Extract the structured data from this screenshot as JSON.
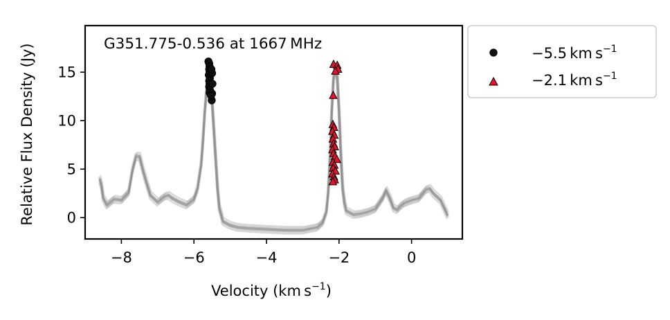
{
  "chart_data": {
    "type": "line",
    "title": "G351.775-0.536 at 1667 MHz",
    "xlabel": "Velocity (km s",
    "xlabel_sup": "−1",
    "xlabel_close": ")",
    "ylabel": "Relative Flux Density (Jy)",
    "xlim": [
      -9.0,
      1.4
    ],
    "ylim": [
      -2.2,
      19.8
    ],
    "x_ticks": [
      -8,
      -6,
      -4,
      -2,
      0
    ],
    "x_tick_labels": [
      "−8",
      "−6",
      "−4",
      "−2",
      "0"
    ],
    "y_ticks": [
      0,
      5,
      10,
      15
    ],
    "y_tick_labels": [
      "0",
      "5",
      "10",
      "15"
    ],
    "grid": false,
    "legend_position": "outside-right",
    "spectrum_color": "#8f8f8f",
    "spectrum_x": [
      -8.6,
      -8.55,
      -8.5,
      -8.4,
      -8.3,
      -8.2,
      -8.0,
      -7.8,
      -7.7,
      -7.6,
      -7.5,
      -7.4,
      -7.3,
      -7.2,
      -7.0,
      -6.8,
      -6.7,
      -6.6,
      -6.4,
      -6.2,
      -6.0,
      -5.9,
      -5.8,
      -5.75,
      -5.7,
      -5.65,
      -5.6,
      -5.55,
      -5.5,
      -5.45,
      -5.4,
      -5.35,
      -5.3,
      -5.2,
      -5.0,
      -4.8,
      -4.5,
      -4.0,
      -3.5,
      -3.0,
      -2.6,
      -2.45,
      -2.35,
      -2.3,
      -2.25,
      -2.2,
      -2.15,
      -2.1,
      -2.05,
      -2.0,
      -1.95,
      -1.9,
      -1.85,
      -1.8,
      -1.6,
      -1.4,
      -1.2,
      -1.0,
      -0.8,
      -0.7,
      -0.6,
      -0.5,
      -0.4,
      -0.3,
      -0.2,
      0.0,
      0.2,
      0.4,
      0.5,
      0.6,
      0.8,
      0.9,
      1.0
    ],
    "spectrum_y": [
      4.0,
      3.3,
      2.0,
      1.3,
      1.6,
      1.9,
      1.8,
      2.6,
      4.8,
      6.3,
      6.3,
      4.8,
      3.5,
      2.3,
      1.6,
      2.2,
      2.3,
      2.0,
      1.6,
      1.3,
      1.9,
      3.0,
      5.5,
      8.0,
      11.0,
      13.2,
      14.5,
      14.0,
      12.0,
      9.0,
      6.0,
      3.0,
      1.0,
      -0.4,
      -0.8,
      -1.0,
      -1.1,
      -1.2,
      -1.3,
      -1.3,
      -1.0,
      -0.5,
      0.6,
      2.5,
      6.0,
      11.0,
      14.5,
      15.2,
      14.5,
      11.0,
      6.5,
      3.0,
      1.5,
      0.7,
      0.3,
      0.4,
      0.6,
      0.9,
      2.0,
      2.8,
      2.0,
      1.0,
      0.8,
      1.2,
      1.5,
      1.8,
      2.0,
      2.9,
      3.0,
      2.5,
      1.8,
      1.0,
      0.2
    ],
    "series": [
      {
        "name": "−5.5 km s",
        "name_sup": "−1",
        "marker": "circle",
        "color": "#111111",
        "edge": "#000000",
        "points": [
          [
            -5.6,
            16.1
          ],
          [
            -5.58,
            15.9
          ],
          [
            -5.57,
            15.6
          ],
          [
            -5.58,
            15.3
          ],
          [
            -5.57,
            15.0
          ],
          [
            -5.59,
            14.7
          ],
          [
            -5.56,
            14.4
          ],
          [
            -5.58,
            14.1
          ],
          [
            -5.57,
            13.8
          ],
          [
            -5.58,
            13.5
          ],
          [
            -5.56,
            13.2
          ],
          [
            -5.57,
            12.9
          ],
          [
            -5.5,
            14.9
          ],
          [
            -5.49,
            13.8
          ],
          [
            -5.5,
            12.8
          ],
          [
            -5.51,
            12.1
          ],
          [
            -5.53,
            12.6
          ],
          [
            -5.52,
            15.3
          ]
        ]
      },
      {
        "name": "−2.1 km s",
        "name_sup": "−1",
        "marker": "triangle",
        "color": "#e8112d",
        "edge": "#000000",
        "points": [
          [
            -2.15,
            15.8
          ],
          [
            -2.05,
            15.7
          ],
          [
            -2.03,
            15.3
          ],
          [
            -2.1,
            15.1
          ],
          [
            -2.16,
            12.6
          ],
          [
            -2.17,
            9.6
          ],
          [
            -2.14,
            9.3
          ],
          [
            -2.18,
            8.9
          ],
          [
            -2.13,
            8.5
          ],
          [
            -2.17,
            8.1
          ],
          [
            -2.15,
            7.6
          ],
          [
            -2.12,
            7.3
          ],
          [
            -2.18,
            7.0
          ],
          [
            -2.15,
            6.6
          ],
          [
            -2.11,
            6.3
          ],
          [
            -2.06,
            6.0
          ],
          [
            -2.17,
            5.7
          ],
          [
            -2.13,
            5.4
          ],
          [
            -2.16,
            5.1
          ],
          [
            -2.1,
            4.8
          ],
          [
            -2.18,
            4.5
          ],
          [
            -2.14,
            4.2
          ],
          [
            -2.12,
            3.9
          ],
          [
            -2.17,
            3.7
          ]
        ]
      }
    ]
  }
}
